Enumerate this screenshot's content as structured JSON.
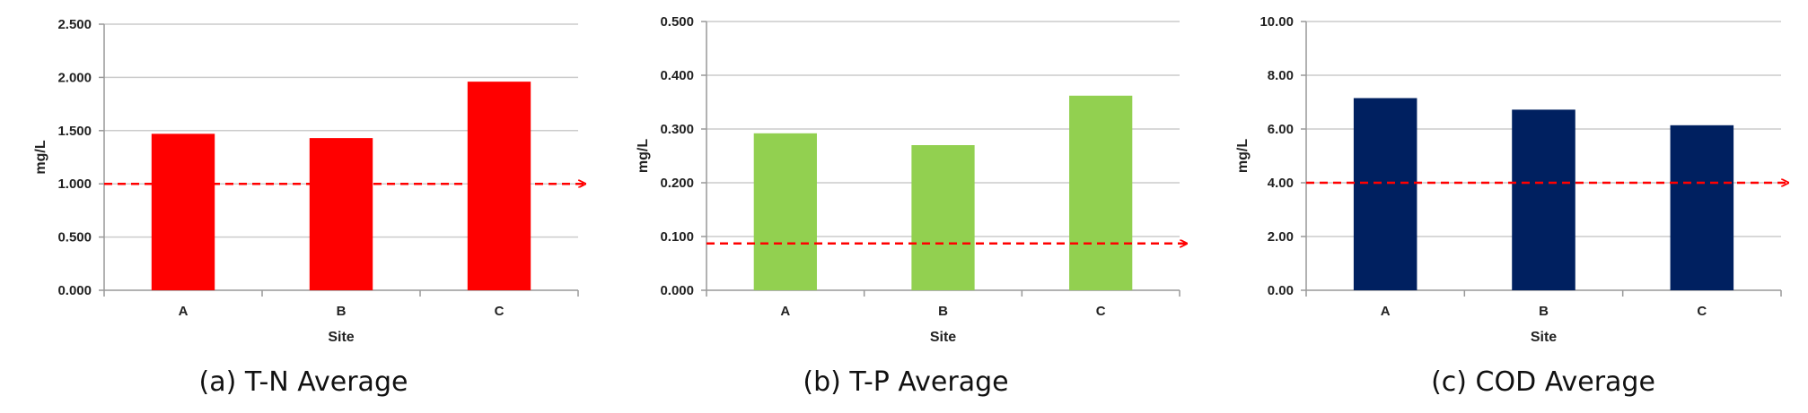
{
  "chart_data": [
    {
      "type": "bar",
      "caption": "(a) T-N Average",
      "categories": [
        "A",
        "B",
        "C"
      ],
      "values": [
        1.47,
        1.43,
        1.96
      ],
      "xlabel": "Site",
      "ylabel": "mg/L",
      "ylim": [
        0,
        2.5
      ],
      "yticks": [
        0,
        0.5,
        1,
        1.5,
        2,
        2.5
      ],
      "ytick_labels": [
        "0.000",
        "0.500",
        "1.000",
        "1.500",
        "2.000",
        "2.500"
      ],
      "bar_color": "#ff0000",
      "reference_line": {
        "value": 1.0,
        "color": "#ff0000",
        "style": "dashed-arrow"
      },
      "grid": true
    },
    {
      "type": "bar",
      "caption": "(b) T-P Average",
      "categories": [
        "A",
        "B",
        "C"
      ],
      "values": [
        0.292,
        0.27,
        0.362
      ],
      "xlabel": "Site",
      "ylabel": "mg/L",
      "ylim": [
        0,
        0.5
      ],
      "yticks": [
        0,
        0.1,
        0.2,
        0.3,
        0.4,
        0.5
      ],
      "ytick_labels": [
        "0.000",
        "0.100",
        "0.200",
        "0.300",
        "0.400",
        "0.500"
      ],
      "bar_color": "#92d050",
      "reference_line": {
        "value": 0.087,
        "color": "#ff0000",
        "style": "dashed-arrow"
      },
      "grid": true
    },
    {
      "type": "bar",
      "caption": "(c) COD Average",
      "categories": [
        "A",
        "B",
        "C"
      ],
      "values": [
        7.15,
        6.72,
        6.14
      ],
      "xlabel": "Site",
      "ylabel": "mg/L",
      "ylim": [
        0,
        10
      ],
      "yticks": [
        0,
        2,
        4,
        6,
        8,
        10
      ],
      "ytick_labels": [
        "0.00",
        "2.00",
        "4.00",
        "6.00",
        "8.00",
        "10.00"
      ],
      "bar_color": "#002060",
      "reference_line": {
        "value": 4.0,
        "color": "#ff0000",
        "style": "dashed-arrow"
      },
      "grid": true
    }
  ]
}
